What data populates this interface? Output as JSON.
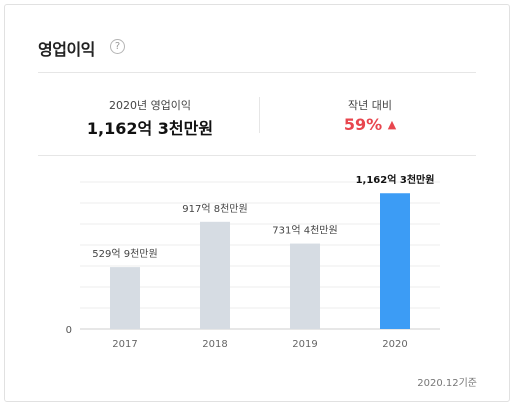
{
  "section": {
    "title": "영업이익",
    "help_glyph": "?"
  },
  "summary": {
    "current": {
      "label": "2020년 영업이익",
      "value": "1,162억 3천만원"
    },
    "yoy": {
      "label": "작년 대비",
      "value": "59%",
      "arrow": "▲",
      "color": "#e8464e"
    }
  },
  "chart_data": {
    "type": "bar",
    "categories": [
      "2017",
      "2018",
      "2019",
      "2020"
    ],
    "values": [
      529.9,
      917.8,
      731.4,
      1162.3
    ],
    "value_labels": [
      "529억 9천만원",
      "917억 8천만원",
      "731억 4천만원",
      "1,162억 3천만원"
    ],
    "highlight_index": 3,
    "colors": {
      "bar": "#d6dce3",
      "highlight": "#3c9cf5",
      "grid": "#eeeeee"
    },
    "y_tick_labels": [
      "0"
    ],
    "ylim": [
      0,
      1250
    ],
    "grid": true
  },
  "footnote": "2020.12기준"
}
